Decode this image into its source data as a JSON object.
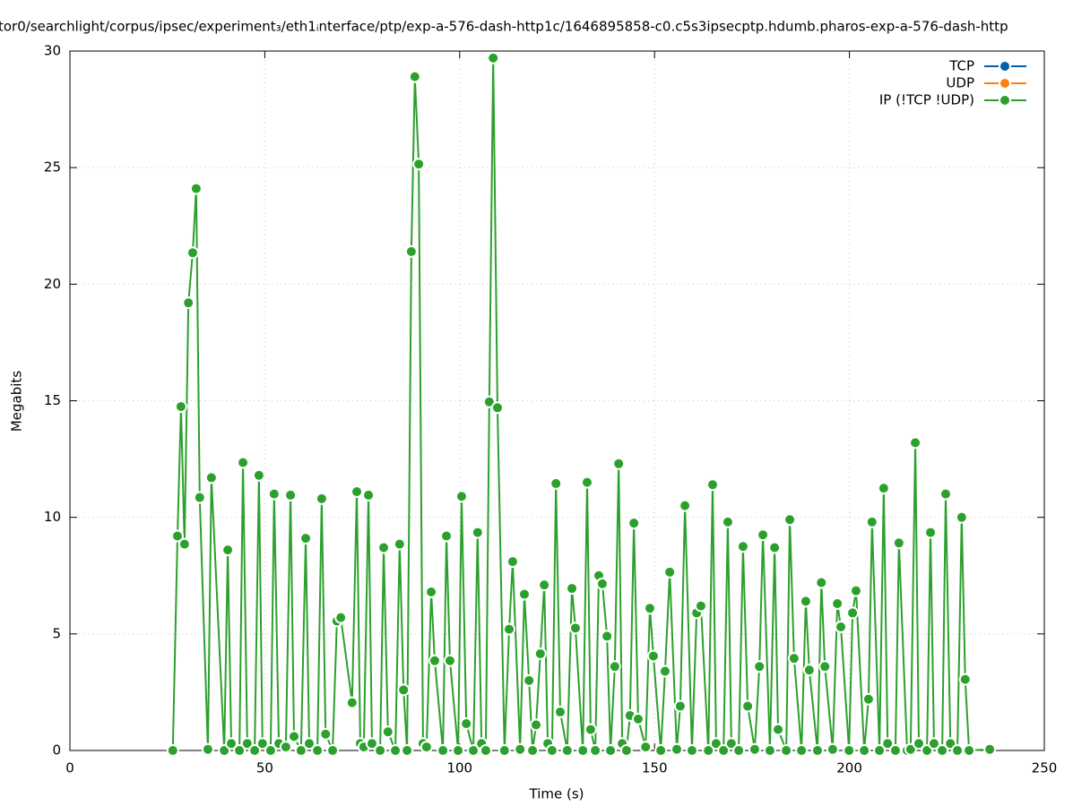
{
  "chart_data": {
    "type": "line",
    "title": "tor0/searchlight/corpus/ipsec/experiment₃/eth1ᵢnterface/ptp/exp-a-576-dash-http1c/1646895858-c0.c5s3ipsecptp.hdumb.pharos-exp-a-576-dash-http",
    "x_label": "Time (s)",
    "y_label": "Megabits",
    "xlim": [
      0,
      250
    ],
    "xticks": [
      0,
      50,
      100,
      150,
      200,
      250
    ],
    "ylim": [
      0,
      30
    ],
    "yticks": [
      0,
      5,
      10,
      15,
      20,
      25,
      30
    ],
    "grid": true,
    "legend": "top-right",
    "series": [
      {
        "name": "TCP",
        "color": "#0060ad",
        "x": [],
        "values": []
      },
      {
        "name": "UDP",
        "color": "#ff7f0e",
        "x": [],
        "values": []
      },
      {
        "name": "IP (!TCP  !UDP)",
        "color": "#2ca02c",
        "x": [
          26.4,
          27.6,
          28.5,
          29.4,
          30.4,
          31.5,
          32.4,
          33.3,
          35.4,
          36.3,
          39.6,
          40.5,
          41.4,
          43.5,
          44.4,
          45.5,
          47.4,
          48.5,
          49.4,
          51.5,
          52.4,
          53.6,
          55.4,
          56.6,
          57.5,
          59.3,
          60.5,
          61.4,
          63.5,
          64.6,
          65.6,
          67.4,
          68.5,
          69.5,
          72.4,
          73.6,
          74.5,
          75.4,
          76.6,
          77.5,
          79.6,
          80.5,
          81.6,
          83.5,
          84.6,
          85.6,
          86.5,
          87.6,
          88.5,
          89.5,
          90.6,
          91.5,
          92.7,
          93.6,
          95.7,
          96.6,
          97.5,
          99.6,
          100.5,
          101.7,
          103.5,
          104.6,
          105.6,
          106.7,
          107.6,
          108.6,
          109.7,
          111.5,
          112.7,
          113.6,
          115.5,
          116.6,
          117.8,
          118.7,
          119.6,
          120.7,
          121.7,
          122.6,
          123.7,
          124.7,
          125.8,
          127.6,
          128.8,
          129.7,
          131.6,
          132.7,
          133.6,
          134.8,
          135.7,
          136.6,
          137.8,
          138.7,
          139.8,
          140.8,
          141.7,
          142.8,
          143.7,
          144.7,
          145.8,
          147.7,
          148.8,
          149.7,
          151.6,
          152.7,
          153.9,
          155.7,
          156.6,
          157.8,
          159.6,
          160.8,
          161.9,
          163.8,
          164.9,
          165.8,
          167.7,
          168.8,
          169.7,
          171.6,
          172.7,
          173.9,
          175.7,
          176.9,
          177.8,
          179.6,
          180.8,
          181.7,
          183.8,
          184.7,
          185.8,
          187.7,
          188.8,
          189.7,
          191.8,
          192.8,
          193.7,
          195.7,
          196.9,
          197.8,
          199.9,
          200.8,
          201.7,
          203.8,
          204.9,
          205.8,
          207.7,
          208.8,
          209.8,
          211.8,
          212.7,
          214.8,
          215.7,
          216.9,
          217.8,
          219.9,
          220.8,
          221.7,
          223.8,
          224.7,
          225.9,
          227.7,
          228.8,
          229.7,
          230.7,
          236.0
        ],
        "values": [
          0,
          9.2,
          14.75,
          8.85,
          19.2,
          21.35,
          24.1,
          10.85,
          0.05,
          11.7,
          0,
          8.6,
          0.3,
          0,
          12.35,
          0.3,
          0,
          11.8,
          0.3,
          0,
          11.0,
          0.3,
          0.15,
          10.95,
          0.6,
          0,
          9.1,
          0.3,
          0,
          10.8,
          0.7,
          0,
          5.55,
          5.7,
          2.05,
          11.1,
          0.3,
          0.15,
          10.95,
          0.3,
          0,
          8.7,
          0.8,
          0,
          8.85,
          2.6,
          0,
          21.4,
          28.9,
          25.15,
          0.3,
          0.15,
          6.8,
          3.85,
          0,
          9.2,
          3.85,
          0,
          10.9,
          1.15,
          0,
          9.35,
          0.3,
          0,
          14.95,
          29.7,
          14.7,
          0,
          5.2,
          8.1,
          0.05,
          6.7,
          3.0,
          0,
          1.1,
          4.15,
          7.1,
          0.3,
          0,
          11.45,
          1.65,
          0,
          6.95,
          5.25,
          0,
          11.5,
          0.9,
          0,
          7.5,
          7.15,
          4.9,
          0,
          3.6,
          12.3,
          0.3,
          0,
          1.5,
          9.75,
          1.35,
          0.15,
          6.1,
          4.05,
          0,
          3.4,
          7.65,
          0.05,
          1.9,
          10.5,
          0,
          5.9,
          6.2,
          0,
          11.4,
          0.3,
          0,
          9.8,
          0.3,
          0,
          8.75,
          1.9,
          0.05,
          3.6,
          9.25,
          0,
          8.7,
          0.9,
          0,
          9.9,
          3.95,
          0,
          6.4,
          3.45,
          0,
          7.2,
          3.6,
          0.05,
          6.3,
          5.3,
          0,
          5.9,
          6.85,
          0,
          2.2,
          9.8,
          0,
          11.25,
          0.3,
          0,
          8.9,
          0,
          0.05,
          13.2,
          0.3,
          0,
          9.35,
          0.3,
          0,
          11.0,
          0.3,
          0,
          10.0,
          3.05,
          0,
          0.05
        ]
      }
    ]
  }
}
